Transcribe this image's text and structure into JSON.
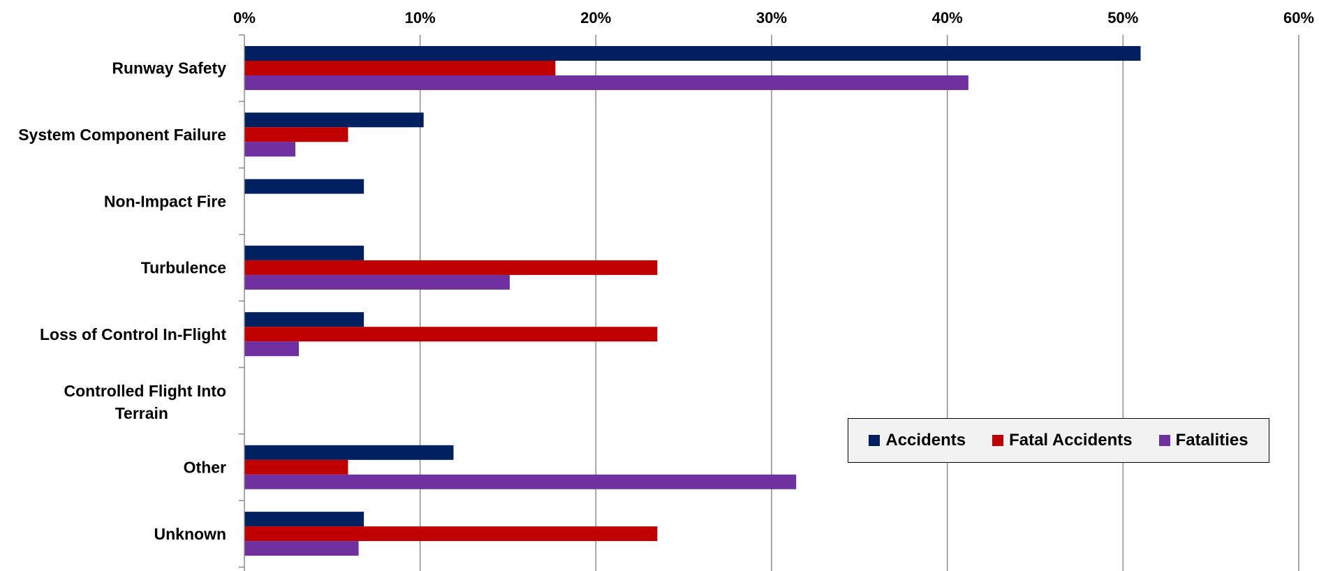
{
  "chart_data": {
    "type": "bar",
    "orientation": "horizontal",
    "categories": [
      "Runway Safety",
      "System Component Failure",
      "Non-Impact Fire",
      "Turbulence",
      "Loss of Control In-Flight",
      "Controlled Flight Into Terrain",
      "Other",
      "Unknown"
    ],
    "series": [
      {
        "name": "Accidents",
        "color": "#002060",
        "values": [
          51,
          10.2,
          6.8,
          6.8,
          6.8,
          0,
          11.9,
          6.8
        ]
      },
      {
        "name": "Fatal Accidents",
        "color": "#c00000",
        "values": [
          17.7,
          5.9,
          0,
          23.5,
          23.5,
          0,
          5.9,
          23.5
        ]
      },
      {
        "name": "Fatalities",
        "color": "#7030a0",
        "values": [
          41.2,
          2.9,
          0,
          15.1,
          3.1,
          0,
          31.4,
          6.5
        ]
      }
    ],
    "xlim": [
      0,
      60
    ],
    "ticks": [
      "0%",
      "10%",
      "20%",
      "30%",
      "40%",
      "50%",
      "60%"
    ],
    "title": "",
    "xlabel": "",
    "ylabel": "",
    "grid": true,
    "legend_position": "bottom-right"
  }
}
